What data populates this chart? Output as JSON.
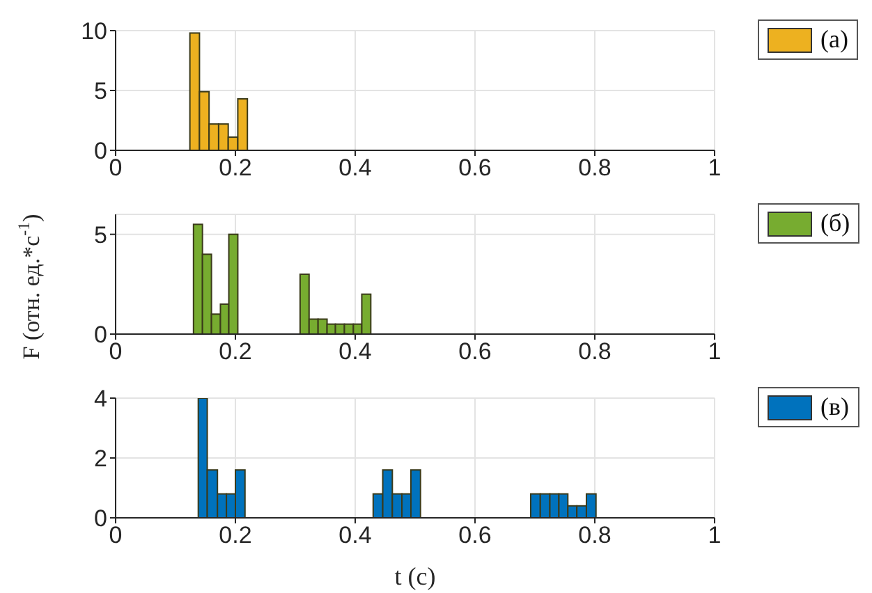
{
  "chart_data": [
    {
      "type": "histogram",
      "series": [
        {
          "name": "(а)",
          "color": "#edb120",
          "values": [
            9.8,
            4.9,
            2.2,
            2.2,
            1.1,
            4.3
          ]
        }
      ],
      "bins": [
        0.124,
        0.14,
        0.156,
        0.172,
        0.188,
        0.204,
        0.22
      ],
      "xlim": [
        0,
        1
      ],
      "xticks": [
        0,
        0.2,
        0.4,
        0.6,
        0.8,
        1
      ],
      "ylim": [
        0,
        10
      ],
      "yticks": [
        0,
        5,
        10
      ],
      "grid": true,
      "legend": "right"
    },
    {
      "type": "histogram",
      "series": [
        {
          "name": "(б)",
          "color": "#77ac30",
          "values": [
            5.5,
            4.0,
            1.0,
            1.5,
            5.0,
            0,
            3.0,
            0.75,
            0.75,
            0.5,
            0.5,
            0.5,
            0.5,
            2.0
          ]
        }
      ],
      "bins": [
        0.13,
        0.145,
        0.16,
        0.175,
        0.189,
        0.204,
        0.308,
        0.323,
        0.338,
        0.353,
        0.367,
        0.382,
        0.397,
        0.411,
        0.426
      ],
      "xlim": [
        0,
        1
      ],
      "xticks": [
        0,
        0.2,
        0.4,
        0.6,
        0.8,
        1
      ],
      "ylim": [
        0,
        6
      ],
      "yticks": [
        0,
        5
      ],
      "ylabel": "F (отн. ед.*с$^{-1}$)",
      "grid": true,
      "legend": "right"
    },
    {
      "type": "histogram",
      "series": [
        {
          "name": "(в)",
          "color": "#0072bd",
          "values": [
            4.0,
            1.6,
            0.8,
            0.8,
            1.6,
            0,
            0.8,
            1.6,
            0.8,
            0.8,
            1.6,
            0,
            0.8,
            0.8,
            0.8,
            0.8,
            0.4,
            0.4,
            0.8
          ]
        }
      ],
      "bins": [
        0.138,
        0.153,
        0.17,
        0.185,
        0.2,
        0.216,
        0.43,
        0.446,
        0.462,
        0.478,
        0.493,
        0.509,
        0.693,
        0.709,
        0.725,
        0.74,
        0.755,
        0.77,
        0.786,
        0.802
      ],
      "xlim": [
        0,
        1
      ],
      "xticks": [
        0,
        0.2,
        0.4,
        0.6,
        0.8,
        1
      ],
      "ylim": [
        0,
        4
      ],
      "yticks": [
        0,
        2,
        4
      ],
      "xlabel": "t (с)",
      "grid": true,
      "legend": "right"
    }
  ]
}
